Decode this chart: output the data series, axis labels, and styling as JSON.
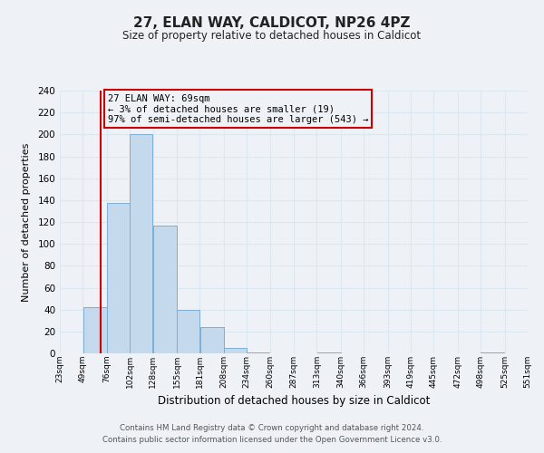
{
  "title": "27, ELAN WAY, CALDICOT, NP26 4PZ",
  "subtitle": "Size of property relative to detached houses in Caldicot",
  "xlabel": "Distribution of detached houses by size in Caldicot",
  "ylabel": "Number of detached properties",
  "bin_edges": [
    23,
    49,
    76,
    102,
    128,
    155,
    181,
    208,
    234,
    260,
    287,
    313,
    340,
    366,
    393,
    419,
    445,
    472,
    498,
    525,
    551
  ],
  "bar_heights": [
    0,
    42,
    137,
    200,
    117,
    40,
    24,
    5,
    1,
    0,
    0,
    1,
    0,
    0,
    0,
    0,
    0,
    0,
    1,
    0
  ],
  "bar_color": "#c5d9ed",
  "bar_edgecolor": "#7bafd4",
  "property_size": 69,
  "vline_color": "#cc0000",
  "annotation_text": "27 ELAN WAY: 69sqm\n← 3% of detached houses are smaller (19)\n97% of semi-detached houses are larger (543) →",
  "annotation_box_color": "#cc0000",
  "ylim": [
    0,
    240
  ],
  "yticks": [
    0,
    20,
    40,
    60,
    80,
    100,
    120,
    140,
    160,
    180,
    200,
    220,
    240
  ],
  "grid_color": "#dce8f0",
  "background_color": "#eef2f7",
  "footnote1": "Contains HM Land Registry data © Crown copyright and database right 2024.",
  "footnote2": "Contains public sector information licensed under the Open Government Licence v3.0."
}
